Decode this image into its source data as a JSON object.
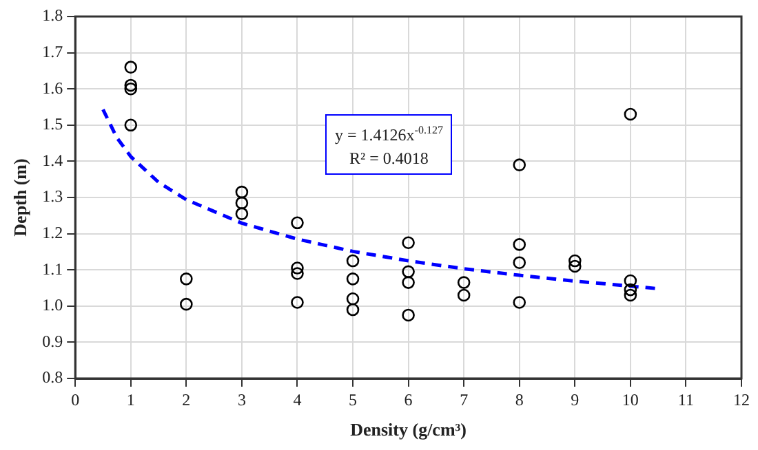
{
  "chart_data": {
    "type": "scatter",
    "xlabel": "Density (g/cm³)",
    "ylabel": "Depth (m)",
    "xlim": [
      0,
      12
    ],
    "xticks": [
      0,
      1,
      2,
      3,
      4,
      5,
      6,
      7,
      8,
      9,
      10,
      11,
      12
    ],
    "ylim": [
      0.8,
      1.8
    ],
    "yticks": [
      {
        "value": 0.8,
        "label": "0.8"
      },
      {
        "value": 0.9,
        "label": "0.9"
      },
      {
        "value": 1,
        "label": "1.0"
      },
      {
        "value": 1.1,
        "label": "1.1"
      },
      {
        "value": 1.2,
        "label": "1.2"
      },
      {
        "value": 1.3,
        "label": "1.3"
      },
      {
        "value": 1.4,
        "label": "1.4"
      },
      {
        "value": 1.5,
        "label": "1.5"
      },
      {
        "value": 1.6,
        "label": "1.6"
      },
      {
        "value": 1.7,
        "label": "1.7"
      },
      {
        "value": 1.8,
        "label": "1.8"
      }
    ],
    "grid": true,
    "legend": false,
    "series": [
      {
        "color": "#000000",
        "marker": "circle",
        "x": [
          1,
          1,
          1,
          1,
          2,
          2,
          3,
          3,
          3,
          4,
          4,
          4,
          4,
          5,
          5,
          5,
          5,
          6,
          6,
          6,
          6,
          7,
          7,
          8,
          8,
          8,
          8,
          9,
          9,
          10,
          10,
          10,
          10
        ],
        "values": [
          1.66,
          1.61,
          1.6,
          1.5,
          1.075,
          1.005,
          1.315,
          1.285,
          1.255,
          1.23,
          1.105,
          1.09,
          1.01,
          1.125,
          1.075,
          1.02,
          0.99,
          1.175,
          1.095,
          1.065,
          0.975,
          1.065,
          1.03,
          1.39,
          1.17,
          1.12,
          1.01,
          1.125,
          1.11,
          1.53,
          1.07,
          1.045,
          1.03
        ]
      },
      {
        "type": "line",
        "color": "#0000ff",
        "line_style": "dashed",
        "marker": "none",
        "x": [
          0.5,
          0.75,
          1,
          1.5,
          2,
          3,
          4,
          5,
          6,
          7,
          8,
          9,
          10,
          10.5
        ],
        "values": [
          1.543,
          1.465,
          1.413,
          1.342,
          1.294,
          1.229,
          1.185,
          1.151,
          1.125,
          1.103,
          1.085,
          1.069,
          1.055,
          1.048
        ]
      }
    ],
    "annotations": [
      "y = 1.4126x$^{-0.127}$",
      "R² = 0.4018"
    ]
  }
}
